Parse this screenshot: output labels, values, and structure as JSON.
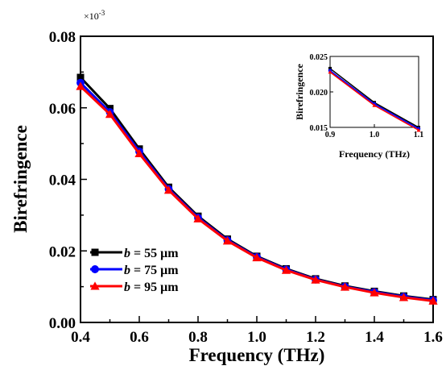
{
  "colors": {
    "b55": "#000000",
    "b75": "#0000ff",
    "b95": "#ff0000"
  },
  "chart_data": [
    {
      "type": "line",
      "xlabel": "Frequency (THz)",
      "ylabel": "Birefringence",
      "xlim": [
        0.4,
        1.6
      ],
      "ylim": [
        0.0,
        0.08
      ],
      "xticks": [
        "0.4",
        "0.6",
        "0.8",
        "1.0",
        "1.2",
        "1.4",
        "1.6"
      ],
      "yticks": [
        "0.00",
        "0.02",
        "0.04",
        "0.06",
        "0.08"
      ],
      "multiplier": "×10",
      "multiplier_exp": "-3",
      "grid": false,
      "legend_position": "bottom-left",
      "x": [
        0.4,
        0.5,
        0.6,
        0.7,
        0.8,
        0.9,
        1.0,
        1.1,
        1.2,
        1.3,
        1.4,
        1.5,
        1.6
      ],
      "series": [
        {
          "name": "b = 55 μm",
          "name_italic": "b",
          "name_rest": " = 55 μm",
          "color": "#000000",
          "marker": "square",
          "values": [
            0.0685,
            0.0598,
            0.0485,
            0.0378,
            0.0297,
            0.0233,
            0.0185,
            0.015,
            0.0122,
            0.0102,
            0.0087,
            0.0074,
            0.0064
          ]
        },
        {
          "name": "b = 75 μm",
          "name_italic": "b",
          "name_rest": " = 75 μm",
          "color": "#0000ff",
          "marker": "circle",
          "values": [
            0.067,
            0.0588,
            0.0478,
            0.0373,
            0.0293,
            0.023,
            0.0183,
            0.0148,
            0.012,
            0.01,
            0.0085,
            0.0072,
            0.0062
          ]
        },
        {
          "name": "b = 95 μm",
          "name_italic": "b",
          "name_rest": " = 95 μm",
          "color": "#ff0000",
          "marker": "triangle",
          "values": [
            0.066,
            0.0582,
            0.0472,
            0.037,
            0.029,
            0.0228,
            0.0181,
            0.0146,
            0.0119,
            0.0099,
            0.0083,
            0.007,
            0.006
          ]
        }
      ]
    },
    {
      "type": "line",
      "role": "inset",
      "xlabel": "Frequency (THz)",
      "ylabel": "Birefringence",
      "xlim": [
        0.9,
        1.1
      ],
      "ylim": [
        0.015,
        0.025
      ],
      "xticks": [
        "0.9",
        "1.0",
        "1.1"
      ],
      "yticks": [
        "0.015",
        "0.020",
        "0.025"
      ],
      "grid": false,
      "x": [
        0.9,
        1.0,
        1.1
      ],
      "series": [
        {
          "name": "b = 55 μm",
          "color": "#000000",
          "marker": "square",
          "values": [
            0.0233,
            0.0185,
            0.015
          ]
        },
        {
          "name": "b = 75 μm",
          "color": "#0000ff",
          "marker": "circle",
          "values": [
            0.023,
            0.0183,
            0.0148
          ]
        },
        {
          "name": "b = 95 μm",
          "color": "#ff0000",
          "marker": "triangle",
          "values": [
            0.0228,
            0.0181,
            0.0146
          ]
        }
      ]
    }
  ]
}
